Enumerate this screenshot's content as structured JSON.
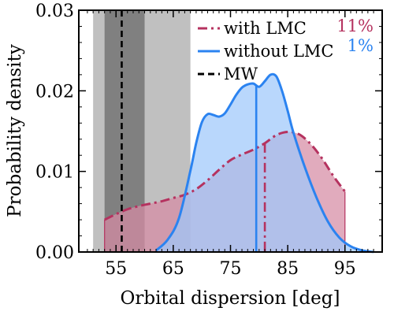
{
  "chart_data": {
    "type": "area",
    "xlabel": "Orbital dispersion [deg]",
    "ylabel": "Probability density",
    "xlim": [
      48.5,
      101.5
    ],
    "ylim": [
      0,
      0.03
    ],
    "xticks": [
      55,
      65,
      75,
      85,
      95
    ],
    "xtick_labels": [
      "55",
      "65",
      "75",
      "85",
      "95"
    ],
    "yticks": [
      0,
      0.01,
      0.02,
      0.03
    ],
    "ytick_labels": [
      "0.00",
      "0.01",
      "0.02",
      "0.03"
    ],
    "bands": [
      {
        "x0": 51.0,
        "x1": 68.0,
        "color": "#c0c0c0"
      },
      {
        "x0": 53.0,
        "x1": 60.0,
        "color": "#808080"
      }
    ],
    "reference_line": {
      "name": "MW",
      "x": 56.0,
      "color": "#000000",
      "style": "dashed"
    },
    "series": [
      {
        "name": "with LMC",
        "color": "#b5325f",
        "fill": "#d68ba3",
        "style": "dashdot",
        "percent_label": "11%",
        "median": 81.0,
        "x": [
          53,
          55,
          57,
          59,
          61,
          63,
          65,
          67,
          69,
          71,
          73,
          75,
          77,
          79,
          81,
          83,
          85,
          87,
          89,
          91,
          93,
          95
        ],
        "y": [
          0.004,
          0.0047,
          0.0053,
          0.0057,
          0.006,
          0.0063,
          0.0067,
          0.0071,
          0.0078,
          0.0089,
          0.0102,
          0.0114,
          0.0121,
          0.0127,
          0.0135,
          0.0145,
          0.0149,
          0.0146,
          0.0134,
          0.0116,
          0.0094,
          0.0075
        ]
      },
      {
        "name": "without LMC",
        "color": "#2b83f0",
        "fill": "#9ec7fb",
        "style": "solid",
        "percent_label": "1%",
        "median": 79.5,
        "x": [
          62,
          64,
          66,
          68,
          69,
          70,
          71,
          72,
          73,
          74,
          75,
          76,
          77,
          78,
          79,
          80,
          81,
          82,
          83,
          84,
          85,
          86,
          88,
          90,
          92,
          94,
          96,
          98,
          100
        ],
        "y": [
          0.0002,
          0.0015,
          0.0042,
          0.0101,
          0.0135,
          0.0161,
          0.0171,
          0.017,
          0.0168,
          0.0172,
          0.0183,
          0.0195,
          0.0204,
          0.0208,
          0.0209,
          0.0205,
          0.0212,
          0.022,
          0.0218,
          0.02,
          0.0175,
          0.0148,
          0.0105,
          0.0068,
          0.0038,
          0.0018,
          0.0007,
          0.0002,
          0.0
        ]
      }
    ],
    "legend_position": "top-center"
  }
}
